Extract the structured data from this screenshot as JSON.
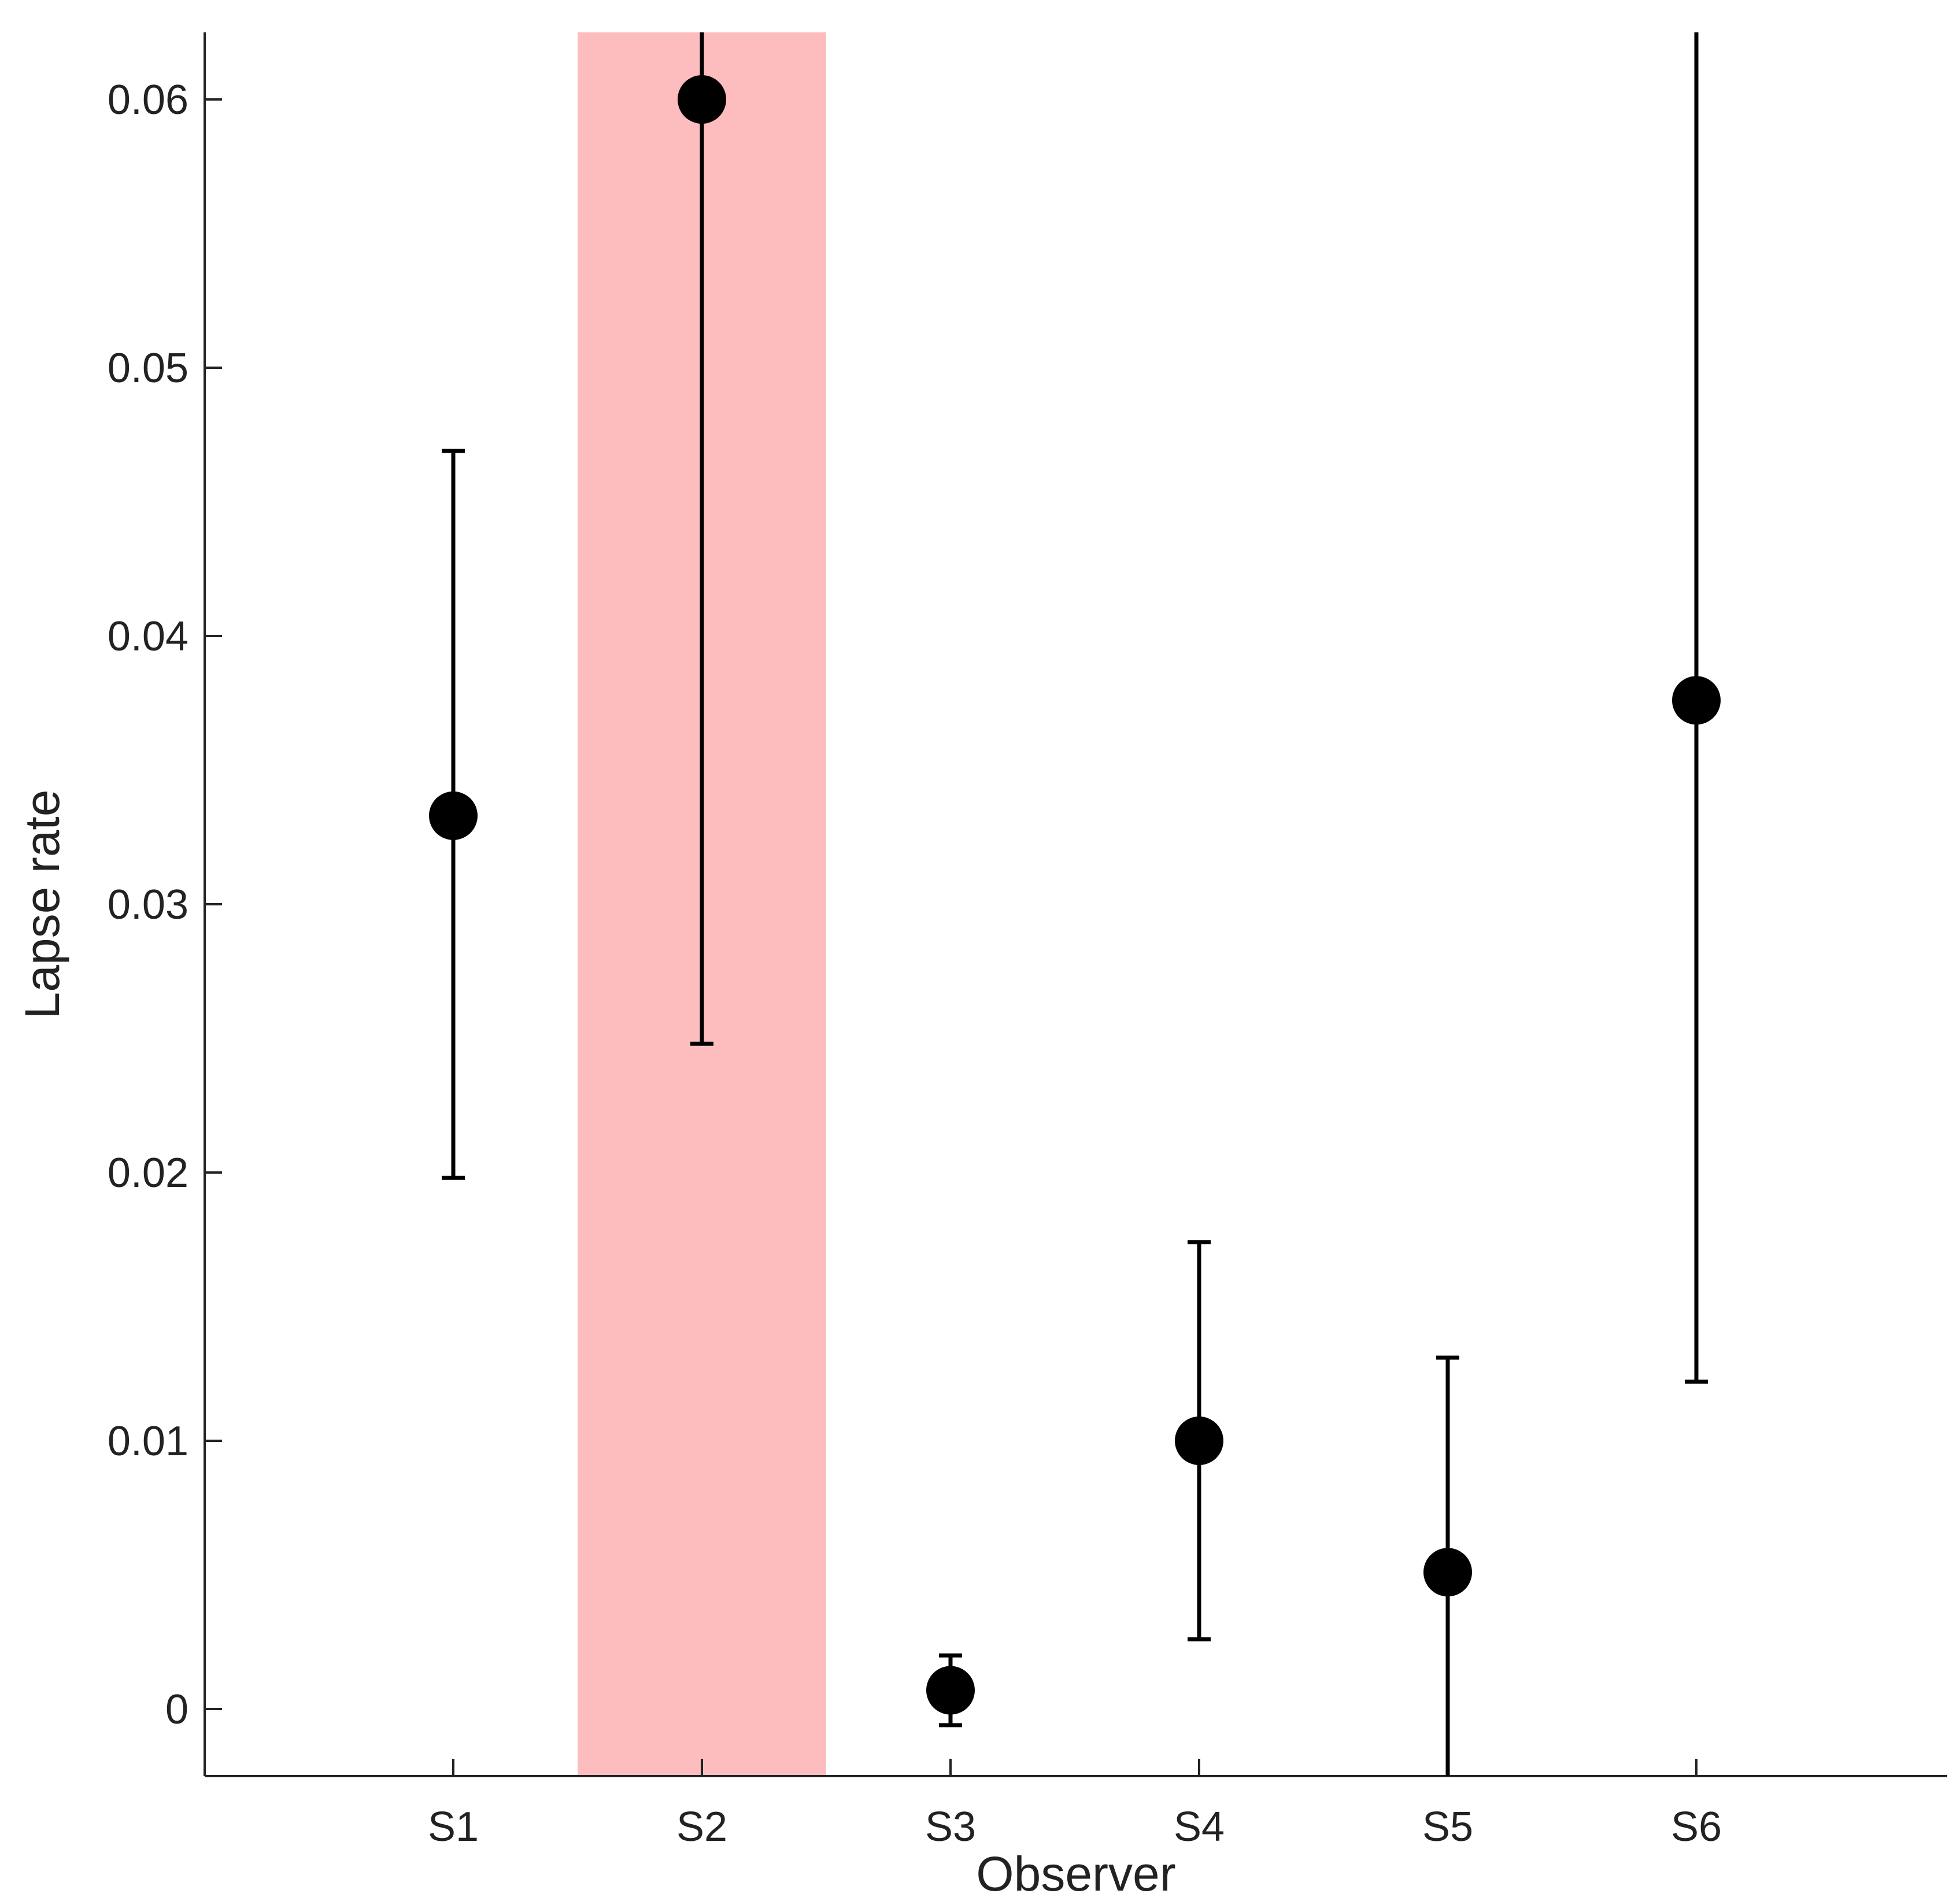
{
  "chart_data": {
    "type": "scatter",
    "title": "",
    "xlabel": "Observer",
    "ylabel": "Lapse rate",
    "categories": [
      "S1",
      "S2",
      "S3",
      "S4",
      "S5",
      "S6"
    ],
    "values": [
      0.0333,
      0.06,
      0.0007,
      0.01,
      0.0051,
      0.0376
    ],
    "error_low": [
      0.0198,
      0.0248,
      -0.0006,
      0.0026,
      -0.0025,
      0.0122
    ],
    "error_high": [
      0.0469,
      0.0625,
      0.002,
      0.0174,
      0.0131,
      0.0625
    ],
    "ylim": [
      -0.0025,
      0.0625
    ],
    "yticks": [
      0,
      0.01,
      0.02,
      0.03,
      0.04,
      0.05,
      0.06
    ],
    "ytick_labels": [
      "0",
      "0.01",
      "0.02",
      "0.03",
      "0.04",
      "0.05",
      "0.06"
    ],
    "highlight_category": "S2",
    "highlight_color": "#fdbdbe",
    "marker_color": "#000000",
    "grid": false
  }
}
